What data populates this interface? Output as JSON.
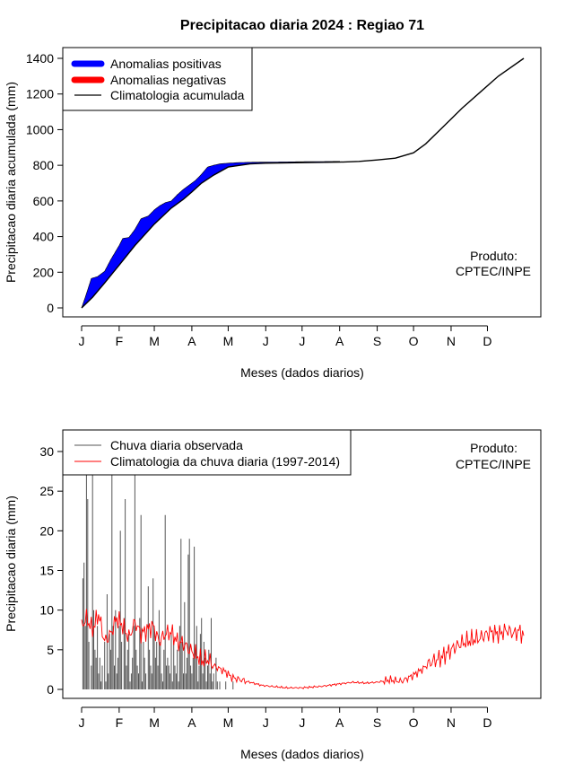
{
  "figure_title": "Precipitacao diaria 2024 : Regiao 71",
  "colors": {
    "positive": "#0000ff",
    "negative": "#ff0000",
    "climatology": "#000000",
    "observed": "#555555",
    "daily_clim": "#ff0000"
  },
  "chart_data": [
    {
      "type": "area",
      "title": "Precipitacao diaria 2024 : Regiao 71",
      "xlabel": "Meses (dados diarios)",
      "ylabel": "Precipitacao diaria acumulada (mm)",
      "xlim": [
        1,
        366
      ],
      "ylim": [
        0,
        1400
      ],
      "x_ticks": [
        "J",
        "F",
        "M",
        "A",
        "M",
        "J",
        "J",
        "A",
        "S",
        "O",
        "N",
        "D"
      ],
      "x_tick_days": [
        1,
        32,
        61,
        92,
        122,
        153,
        183,
        214,
        245,
        275,
        306,
        336
      ],
      "y_ticks": [
        0,
        200,
        400,
        600,
        800,
        1000,
        1200,
        1400
      ],
      "legend": [
        "Anomalias positivas",
        "Anomalias negativas",
        "Climatologia acumulada"
      ],
      "annotation": [
        "Produto:",
        "CPTEC/INPE"
      ],
      "climatology_accumulated": {
        "x": [
          1,
          10,
          20,
          32,
          45,
          61,
          75,
          85,
          92,
          100,
          110,
          122,
          140,
          153,
          183,
          214,
          230,
          245,
          260,
          275,
          285,
          300,
          315,
          330,
          345,
          366
        ],
        "y": [
          0,
          60,
          140,
          240,
          350,
          470,
          560,
          610,
          650,
          700,
          745,
          790,
          808,
          812,
          815,
          818,
          822,
          830,
          840,
          870,
          920,
          1020,
          1120,
          1210,
          1300,
          1400
        ]
      },
      "observed_accumulated": {
        "x": [
          1,
          5,
          9,
          14,
          20,
          25,
          32,
          35,
          40,
          45,
          50,
          56,
          61,
          66,
          70,
          75,
          80,
          85,
          90,
          95,
          100,
          105,
          110,
          115,
          122,
          130,
          140,
          153,
          170,
          183,
          200,
          214
        ],
        "y": [
          0,
          80,
          165,
          175,
          205,
          270,
          350,
          390,
          395,
          440,
          500,
          515,
          550,
          575,
          590,
          600,
          635,
          665,
          690,
          715,
          750,
          790,
          800,
          808,
          812,
          815,
          817,
          818,
          819,
          820,
          821,
          822
        ]
      }
    },
    {
      "type": "bar",
      "xlabel": "Meses (dados diarios)",
      "ylabel": "Precipitacao diaria (mm)",
      "xlim": [
        1,
        366
      ],
      "ylim": [
        0,
        30
      ],
      "x_ticks": [
        "J",
        "F",
        "M",
        "A",
        "M",
        "J",
        "J",
        "A",
        "S",
        "O",
        "N",
        "D"
      ],
      "y_ticks": [
        0,
        5,
        10,
        15,
        20,
        25,
        30
      ],
      "legend": [
        "Chuva diaria observada",
        "Climatologia da chuva diaria (1997-2014)"
      ],
      "annotation": [
        "Produto:",
        "CPTEC/INPE"
      ],
      "observed_daily": [
        0,
        14,
        16,
        8,
        27,
        24,
        6,
        0,
        3,
        27,
        10,
        5,
        4,
        8,
        2,
        4,
        1,
        3,
        0,
        6,
        1,
        12,
        2,
        7,
        5,
        27,
        8,
        3,
        10,
        2,
        4,
        8,
        20,
        6,
        0,
        9,
        24,
        3,
        5,
        7,
        1,
        2,
        4,
        8,
        27,
        5,
        3,
        2,
        9,
        22,
        1,
        6,
        4,
        2,
        0,
        13,
        5,
        3,
        2,
        14,
        8,
        4,
        6,
        3,
        10,
        6,
        2,
        1,
        5,
        22,
        3,
        4,
        3,
        2,
        7,
        1,
        6,
        3,
        2,
        5,
        1,
        8,
        19,
        6,
        2,
        11,
        2,
        4,
        17,
        19,
        3,
        2,
        4,
        18,
        5,
        8,
        1,
        3,
        7,
        9,
        2,
        6,
        4,
        1,
        3,
        5,
        2,
        9,
        1,
        2,
        0,
        4,
        1,
        0,
        1,
        0,
        0,
        0,
        0,
        1,
        0,
        0,
        0,
        0,
        0,
        1,
        0,
        0,
        0,
        0,
        0,
        0,
        0,
        0,
        0,
        0,
        0,
        0,
        0,
        0,
        0,
        0,
        0,
        0,
        0,
        0,
        0,
        0,
        0,
        0,
        0,
        0,
        0,
        0,
        0,
        0,
        0,
        0,
        0,
        0,
        0,
        0,
        0,
        0,
        0,
        0,
        0,
        0,
        0,
        0,
        0,
        0,
        0,
        0,
        0,
        0,
        0,
        0,
        0,
        0,
        0,
        0,
        0,
        0,
        0,
        0,
        0,
        0,
        0,
        0,
        0,
        0,
        0,
        0,
        0,
        0,
        0,
        0,
        0,
        0,
        0,
        0,
        0,
        0,
        0,
        0,
        0,
        0,
        0,
        0,
        0,
        0,
        0,
        0
      ],
      "climatology_daily": {
        "x": [
          1,
          5,
          10,
          15,
          20,
          25,
          30,
          35,
          40,
          45,
          50,
          55,
          60,
          65,
          70,
          75,
          80,
          85,
          90,
          95,
          100,
          105,
          110,
          115,
          120,
          125,
          130,
          140,
          150,
          160,
          170,
          183,
          200,
          214,
          225,
          235,
          245,
          255,
          265,
          275,
          282,
          290,
          298,
          306,
          314,
          322,
          330,
          338,
          346,
          352,
          358,
          362,
          366
        ],
        "y": [
          8.0,
          9.0,
          7.5,
          9.5,
          6.0,
          7.0,
          9.0,
          8.0,
          6.5,
          8.5,
          7.0,
          7.5,
          8.0,
          6.0,
          7.0,
          7.2,
          6.0,
          5.8,
          5.0,
          4.5,
          3.6,
          3.8,
          3.0,
          2.6,
          2.2,
          1.5,
          1.3,
          0.9,
          0.5,
          0.35,
          0.2,
          0.2,
          0.4,
          0.7,
          0.9,
          0.8,
          0.9,
          1.2,
          1.0,
          1.8,
          2.5,
          3.5,
          4.0,
          5.0,
          5.8,
          6.2,
          6.5,
          7.2,
          7.0,
          7.5,
          7.0,
          7.4,
          6.8
        ]
      }
    }
  ]
}
